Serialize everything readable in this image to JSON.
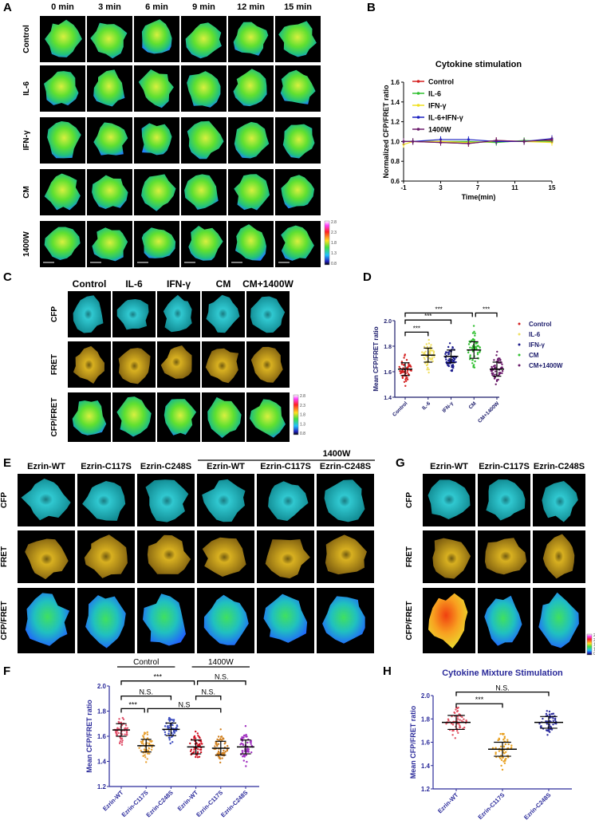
{
  "panel_A": {
    "label": "A",
    "columns": [
      "0 min",
      "3 min",
      "6 min",
      "9 min",
      "12 min",
      "15 min"
    ],
    "rows": [
      "Control",
      "IL-6",
      "IFN-γ",
      "CM",
      "1400W"
    ],
    "colorbar_ticks": [
      "2.8",
      "2.3",
      "1.8",
      "1.3",
      "0.8"
    ]
  },
  "panel_B": {
    "label": "B",
    "chart_data": {
      "type": "line",
      "title": "Cytokine stimulation",
      "xlabel": "Time(min)",
      "ylabel": "Normalized CFP/FRET ratio",
      "x": [
        -1,
        0,
        3,
        6,
        9,
        12,
        15
      ],
      "xticks": [
        "-1",
        "3",
        "7",
        "11",
        "15"
      ],
      "xtick_values": [
        -1,
        3,
        7,
        11,
        15
      ],
      "yticks": [
        "0.6",
        "0.8",
        "1.0",
        "1.2",
        "1.4",
        "1.6"
      ],
      "xlim": [
        -1,
        15
      ],
      "ylim": [
        0.6,
        1.6
      ],
      "legend": "top-left",
      "series": [
        {
          "name": "Control",
          "color": "#d42020",
          "values": [
            1.0,
            1.0,
            0.99,
            0.98,
            1.01,
            1.0,
            1.01
          ]
        },
        {
          "name": "IL-6",
          "color": "#30c030",
          "values": [
            1.0,
            1.0,
            1.0,
            1.0,
            0.99,
            1.01,
            1.0
          ]
        },
        {
          "name": "IFN-γ",
          "color": "#f0e020",
          "values": [
            0.97,
            1.0,
            1.0,
            0.99,
            1.0,
            1.0,
            0.99
          ]
        },
        {
          "name": "IL-6+IFN-γ",
          "color": "#1a20c0",
          "values": [
            1.0,
            1.0,
            1.02,
            1.02,
            1.0,
            1.0,
            1.03
          ]
        },
        {
          "name": "1400W",
          "color": "#6a1a6a",
          "values": [
            1.0,
            1.0,
            0.99,
            0.98,
            1.01,
            1.0,
            1.02
          ]
        }
      ]
    }
  },
  "panel_C": {
    "label": "C",
    "columns": [
      "Control",
      "IL-6",
      "IFN-γ",
      "CM",
      "CM+1400W"
    ],
    "rows": [
      "CFP",
      "FRET",
      "CFP/FRET"
    ]
  },
  "panel_D": {
    "label": "D",
    "chart_data": {
      "type": "scatter",
      "ylabel": "Mean CFP/FRET ratio",
      "categories": [
        "Control",
        "IL-6",
        "IFN-γ",
        "CM",
        "CM+1400W"
      ],
      "yticks": [
        "1.4",
        "1.6",
        "1.8",
        "2.0"
      ],
      "ylim": [
        1.4,
        2.0
      ],
      "legend": "right",
      "series": [
        {
          "name": "Control",
          "color": "#d42020",
          "mean": 1.62,
          "sd": 0.05
        },
        {
          "name": "IL-6",
          "color": "#f0e060",
          "mean": 1.73,
          "sd": 0.055
        },
        {
          "name": "IFN-γ",
          "color": "#1a1a8c",
          "mean": 1.72,
          "sd": 0.05
        },
        {
          "name": "CM",
          "color": "#30c030",
          "mean": 1.77,
          "sd": 0.065
        },
        {
          "name": "CM+1400W",
          "color": "#6a1a6a",
          "mean": 1.62,
          "sd": 0.055
        }
      ],
      "annotations": [
        {
          "from": 0,
          "to": 3,
          "y": 2.06,
          "label": "***"
        },
        {
          "from": 3,
          "to": 4,
          "y": 2.06,
          "label": "***"
        },
        {
          "from": 0,
          "to": 2,
          "y": 2.005,
          "label": "***"
        },
        {
          "from": 0,
          "to": 1,
          "y": 1.91,
          "label": "***"
        }
      ]
    }
  },
  "panel_E": {
    "label": "E",
    "group_label": "1400W",
    "columns": [
      "Ezrin-WT",
      "Ezrin-C117S",
      "Ezrin-C248S",
      "Ezrin-WT",
      "Ezrin-C117S",
      "Ezrin-C248S"
    ],
    "rows": [
      "CFP",
      "FRET",
      "CFP/FRET"
    ]
  },
  "panel_G": {
    "label": "G",
    "columns": [
      "Ezrin-WT",
      "Ezrin-C117S",
      "Ezrin-C248S"
    ],
    "rows": [
      "CFP",
      "FRET",
      "CFP/FRET"
    ]
  },
  "panel_F": {
    "label": "F",
    "chart_data": {
      "type": "scatter",
      "ylabel": "Mean CFP/FRET ratio",
      "groups": [
        {
          "label": "Control",
          "from": 0,
          "to": 2
        },
        {
          "label": "1400W",
          "from": 3,
          "to": 5
        }
      ],
      "categories": [
        "Ezrin-WT",
        "Ezrin-C117S",
        "Ezrin-C248S",
        "Ezrin-WT",
        "Ezrin-C117S",
        "Ezrin-C248S"
      ],
      "yticks": [
        "1.2",
        "1.4",
        "1.6",
        "1.8",
        "2.0"
      ],
      "ylim": [
        1.2,
        2.0
      ],
      "series": [
        {
          "color": "#e0506a",
          "mean": 1.65,
          "sd": 0.05
        },
        {
          "color": "#e8a030",
          "mean": 1.525,
          "sd": 0.05
        },
        {
          "color": "#4050c0",
          "mean": 1.655,
          "sd": 0.05
        },
        {
          "color": "#d01020",
          "mean": 1.515,
          "sd": 0.055
        },
        {
          "color": "#d08020",
          "mean": 1.505,
          "sd": 0.055
        },
        {
          "color": "#a030c0",
          "mean": 1.515,
          "sd": 0.055
        }
      ],
      "annotations": [
        {
          "from": 0,
          "to": 3,
          "y": 2.04,
          "label": "***"
        },
        {
          "from": 3,
          "to": 5,
          "y": 2.04,
          "label": "N.S."
        },
        {
          "from": 0,
          "to": 2,
          "y": 1.92,
          "label": "N.S."
        },
        {
          "from": 3,
          "to": 4,
          "y": 1.92,
          "label": "N.S."
        },
        {
          "from": 0,
          "to": 1,
          "y": 1.82,
          "label": "***"
        },
        {
          "from": 1,
          "to": 4,
          "y": 1.82,
          "label": "N.S"
        }
      ]
    }
  },
  "panel_H": {
    "label": "H",
    "chart_data": {
      "type": "scatter",
      "title": "Cytokine Mixture Stimulation",
      "ylabel": "Mean CFP/FRET ratio",
      "categories": [
        "Ezrin-WT",
        "Ezrin-C117S",
        "Ezrin-C248S"
      ],
      "yticks": [
        "1.2",
        "1.4",
        "1.6",
        "1.8",
        "2.0"
      ],
      "ylim": [
        1.2,
        2.0
      ],
      "series": [
        {
          "color": "#e05060",
          "mean": 1.77,
          "sd": 0.06
        },
        {
          "color": "#e8a020",
          "mean": 1.54,
          "sd": 0.06
        },
        {
          "color": "#3030a0",
          "mean": 1.77,
          "sd": 0.05
        }
      ],
      "annotations": [
        {
          "from": 0,
          "to": 2,
          "y": 2.03,
          "label": "N.S."
        },
        {
          "from": 0,
          "to": 1,
          "y": 1.93,
          "label": "***"
        }
      ]
    }
  },
  "colorbar_ticks": [
    "2.8",
    "2.3",
    "1.8",
    "1.3",
    "0.8"
  ]
}
